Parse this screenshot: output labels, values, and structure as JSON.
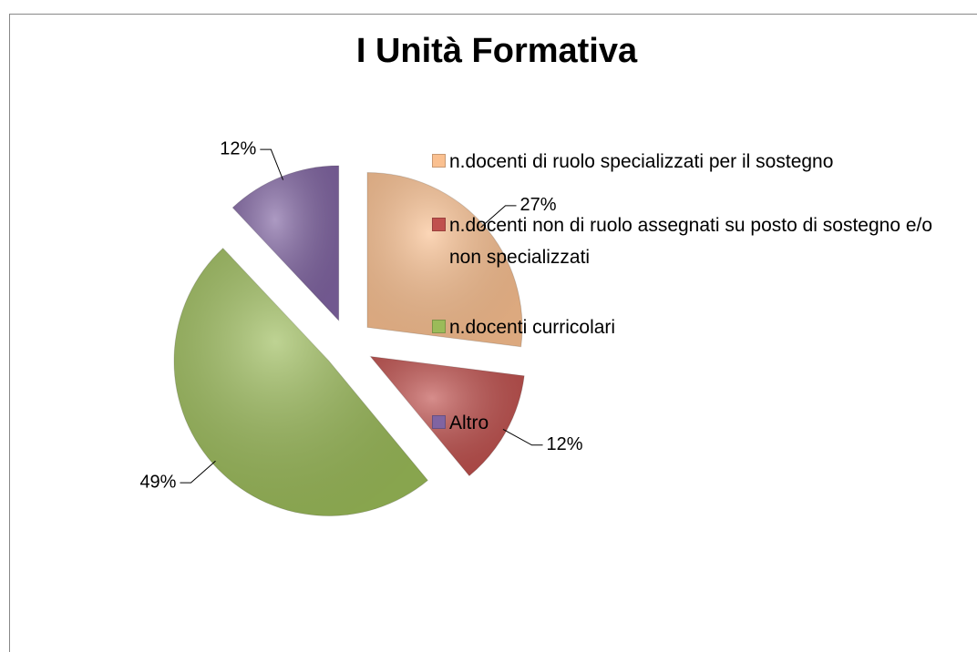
{
  "chart_data": {
    "type": "pie",
    "title": "I Unità Formativa",
    "categories": [
      "n.docenti di ruolo specializzati per il sostegno",
      "n.docenti non di ruolo assegnati su posto di sostegno e/o non specializzati",
      "n.docenti curricolari",
      "Altro"
    ],
    "values": [
      27,
      12,
      49,
      12
    ],
    "value_labels": [
      "27%",
      "12%",
      "49%",
      "12%"
    ],
    "colors": [
      "#fac090",
      "#c0504d",
      "#9bbb59",
      "#8064a2"
    ]
  }
}
